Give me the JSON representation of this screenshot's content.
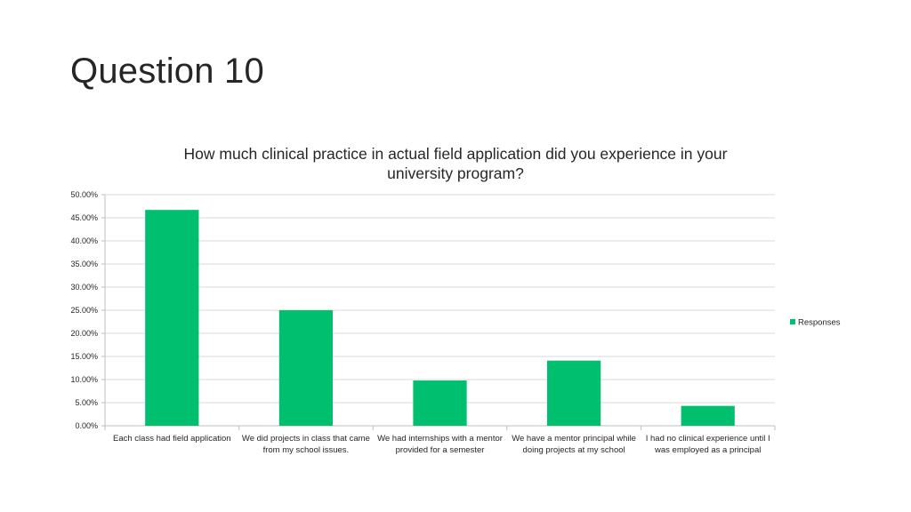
{
  "slide": {
    "title": "Question 10"
  },
  "chart_data": {
    "type": "bar",
    "title_lines": [
      "How much clinical practice in actual field application did you experience in your",
      "university program?"
    ],
    "categories": [
      [
        "Each class had field application"
      ],
      [
        "We did projects in class that came",
        "from my school issues."
      ],
      [
        "We had internships with a mentor",
        "provided for a semester"
      ],
      [
        "We have a mentor principal while",
        "doing projects at my school"
      ],
      [
        "I had no clinical experience until I",
        "was employed as a principal"
      ]
    ],
    "series": [
      {
        "name": "Responses",
        "color": "#00bf6f",
        "values": [
          0.467,
          0.25,
          0.098,
          0.141,
          0.043
        ]
      }
    ],
    "ylim": [
      0,
      0.5
    ],
    "ytick_step": 0.05,
    "ytick_labels": [
      "0.00%",
      "5.00%",
      "10.00%",
      "15.00%",
      "20.00%",
      "25.00%",
      "30.00%",
      "35.00%",
      "40.00%",
      "45.00%",
      "50.00%"
    ],
    "grid": true,
    "legend": "right"
  }
}
